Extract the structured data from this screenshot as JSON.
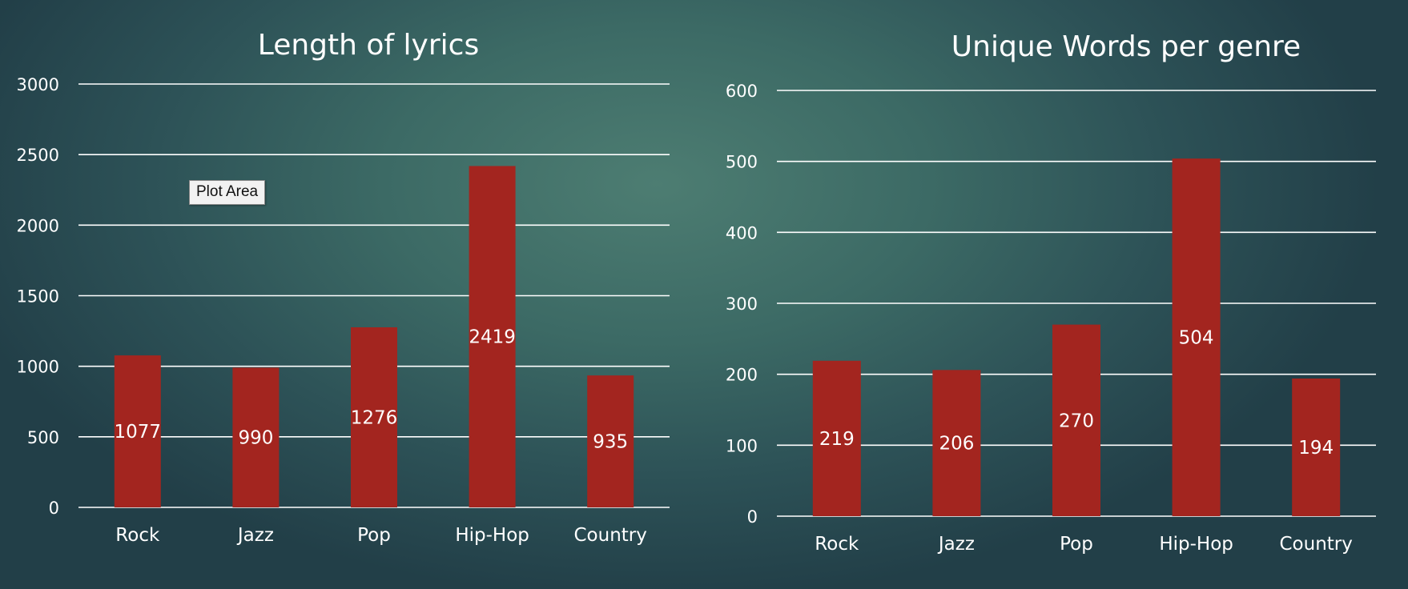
{
  "tooltip": {
    "label": "Plot Area"
  },
  "colors": {
    "bar": "#a3251f",
    "text": "#ffffff",
    "grid": "#ffffff"
  },
  "chart_data": [
    {
      "type": "bar",
      "title": "Length of lyrics",
      "categories": [
        "Rock",
        "Jazz",
        "Pop",
        "Hip-Hop",
        "Country"
      ],
      "values": [
        1077,
        990,
        1276,
        2419,
        935
      ],
      "ylim": [
        0,
        3000
      ],
      "yticks": [
        0,
        500,
        1000,
        1500,
        2000,
        2500,
        3000
      ],
      "grid": true,
      "data_labels": true
    },
    {
      "type": "bar",
      "title": "Unique Words per genre",
      "categories": [
        "Rock",
        "Jazz",
        "Pop",
        "Hip-Hop",
        "Country"
      ],
      "values": [
        219,
        206,
        270,
        504,
        194
      ],
      "ylim": [
        0,
        600
      ],
      "yticks": [
        0,
        100,
        200,
        300,
        400,
        500,
        600
      ],
      "grid": true,
      "data_labels": true
    }
  ]
}
